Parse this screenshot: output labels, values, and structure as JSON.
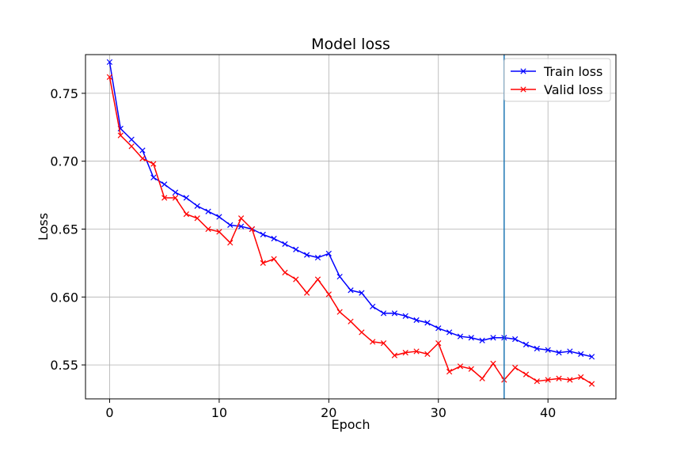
{
  "chart_data": {
    "type": "line",
    "title": "Model loss",
    "xlabel": "Epoch",
    "ylabel": "Loss",
    "xlim": [
      -2.2,
      46.2
    ],
    "ylim": [
      0.525,
      0.7785
    ],
    "xticks": [
      0,
      10,
      20,
      30,
      40
    ],
    "xtick_labels": [
      "0",
      "10",
      "20",
      "30",
      "40"
    ],
    "yticks": [
      0.55,
      0.6,
      0.65,
      0.7,
      0.75
    ],
    "ytick_labels": [
      "0.55",
      "0.60",
      "0.65",
      "0.70",
      "0.75"
    ],
    "grid": true,
    "legend_position": "top-right",
    "marker": "x",
    "x": [
      0,
      1,
      2,
      3,
      4,
      5,
      6,
      7,
      8,
      9,
      10,
      11,
      12,
      13,
      14,
      15,
      16,
      17,
      18,
      19,
      20,
      21,
      22,
      23,
      24,
      25,
      26,
      27,
      28,
      29,
      30,
      31,
      32,
      33,
      34,
      35,
      36,
      37,
      38,
      39,
      40,
      41,
      42,
      43,
      44
    ],
    "series": [
      {
        "name": "Train loss",
        "color": "#0000ff",
        "values": [
          0.773,
          0.724,
          0.716,
          0.708,
          0.688,
          0.683,
          0.677,
          0.673,
          0.667,
          0.663,
          0.659,
          0.653,
          0.652,
          0.65,
          0.646,
          0.643,
          0.639,
          0.635,
          0.631,
          0.629,
          0.632,
          0.615,
          0.605,
          0.603,
          0.593,
          0.588,
          0.588,
          0.586,
          0.583,
          0.581,
          0.577,
          0.574,
          0.571,
          0.57,
          0.568,
          0.57,
          0.57,
          0.569,
          0.565,
          0.562,
          0.561,
          0.559,
          0.56,
          0.558,
          0.556
        ]
      },
      {
        "name": "Valid loss",
        "color": "#ff0000",
        "values": [
          0.762,
          0.719,
          0.711,
          0.702,
          0.698,
          0.673,
          0.673,
          0.661,
          0.658,
          0.65,
          0.648,
          0.64,
          0.658,
          0.65,
          0.625,
          0.628,
          0.618,
          0.613,
          0.603,
          0.613,
          0.602,
          0.589,
          0.582,
          0.574,
          0.567,
          0.566,
          0.557,
          0.559,
          0.56,
          0.558,
          0.566,
          0.545,
          0.549,
          0.547,
          0.54,
          0.551,
          0.539,
          0.548,
          0.543,
          0.538,
          0.539,
          0.54,
          0.539,
          0.541,
          0.536
        ]
      }
    ],
    "vertical_line": {
      "x": 36,
      "color": "#1f77b4"
    }
  }
}
